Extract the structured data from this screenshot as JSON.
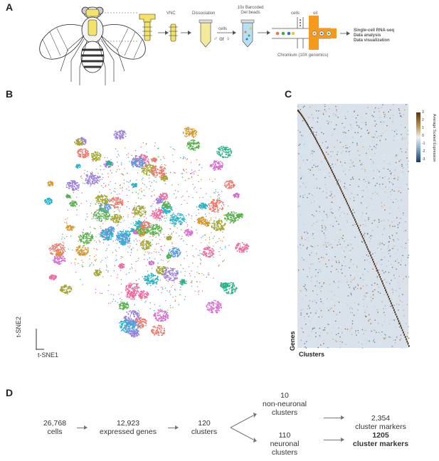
{
  "panels": {
    "a": "A",
    "b": "B",
    "c": "C",
    "d": "D"
  },
  "panel_a": {
    "vnc": "VNC",
    "dissociation": "Dissociation",
    "cells": "cells",
    "sexes": "♂ or ♀",
    "beads_line1": "10x Barcoded",
    "beads_line2": "Gel beads",
    "chip_cells": "cells",
    "chip_oil": "oil",
    "chromium": "Chromium (10X genomics)",
    "outputs": [
      "Single-cell RNA-seq",
      "Data analysis",
      "Data visualization"
    ]
  },
  "panel_b": {
    "xlabel": "t-SNE1",
    "ylabel": "t-SNE2",
    "palette": [
      "#f0786a",
      "#d7962b",
      "#a3a533",
      "#56b04a",
      "#2bb38a",
      "#26b3c9",
      "#5c9ae0",
      "#9a7fd8",
      "#d76bd0",
      "#ee6aa0"
    ]
  },
  "panel_c": {
    "xlabel": "Clusters",
    "ylabel": "Genes",
    "colorbar_title": "Average Scaled Expression",
    "colorbar_ticks": [
      "3",
      "2",
      "1",
      "0",
      "-1",
      "-2",
      "-3"
    ]
  },
  "panel_d": {
    "cells_num": "26,768",
    "cells_lbl": "cells",
    "genes_num": "12,923",
    "genes_lbl": "expressed genes",
    "clusters_num": "120",
    "clusters_lbl": "clusters",
    "nonneuro_num": "10",
    "nonneuro_lbl1": "non-neuronal",
    "nonneuro_lbl2": "clusters",
    "nonneuro_markers_num": "2,354",
    "nonneuro_markers_lbl": "cluster markers",
    "neuro_num": "110",
    "neuro_lbl1": "neuronal",
    "neuro_lbl2": "clusters",
    "neuro_markers_num": "1205",
    "neuro_markers_lbl": "cluster markers"
  }
}
